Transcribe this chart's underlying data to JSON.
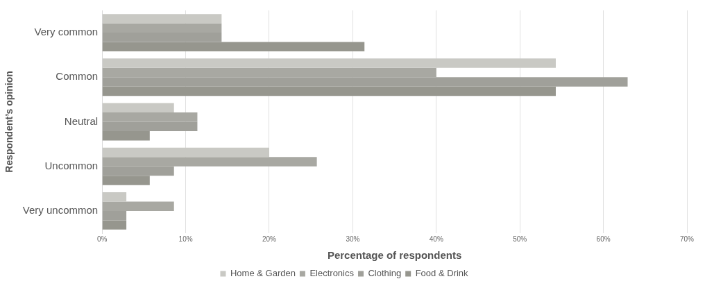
{
  "chart_data": {
    "type": "bar",
    "orientation": "horizontal",
    "xlabel": "Percentage of respondents",
    "ylabel": "Respondent’s opinion",
    "categories": [
      "Very common",
      "Common",
      "Neutral",
      "Uncommon",
      "Very uncommon"
    ],
    "series": [
      {
        "name": "Home & Garden",
        "color": "#c9c9c4",
        "values": [
          14.3,
          54.3,
          8.6,
          20,
          2.9
        ]
      },
      {
        "name": "Electronics",
        "color": "#a8a8a2",
        "values": [
          14.3,
          40,
          11.4,
          25.7,
          8.6
        ]
      },
      {
        "name": "Clothing",
        "color": "#a0a09a",
        "values": [
          14.3,
          62.9,
          11.4,
          8.6,
          2.9
        ]
      },
      {
        "name": "Food & Drink",
        "color": "#96968e",
        "values": [
          31.4,
          54.3,
          5.7,
          5.7,
          2.9
        ]
      }
    ],
    "xlim": [
      0,
      70
    ],
    "xticks": [
      {
        "value": 0,
        "label": "0%"
      },
      {
        "value": 10,
        "label": "10%"
      },
      {
        "value": 20,
        "label": "20%"
      },
      {
        "value": 30,
        "label": "30%"
      },
      {
        "value": 40,
        "label": "40%"
      },
      {
        "value": 50,
        "label": "50%"
      },
      {
        "value": 60,
        "label": "60%"
      },
      {
        "value": 70,
        "label": "70%"
      }
    ],
    "grid": "x",
    "legend": "bottom"
  }
}
